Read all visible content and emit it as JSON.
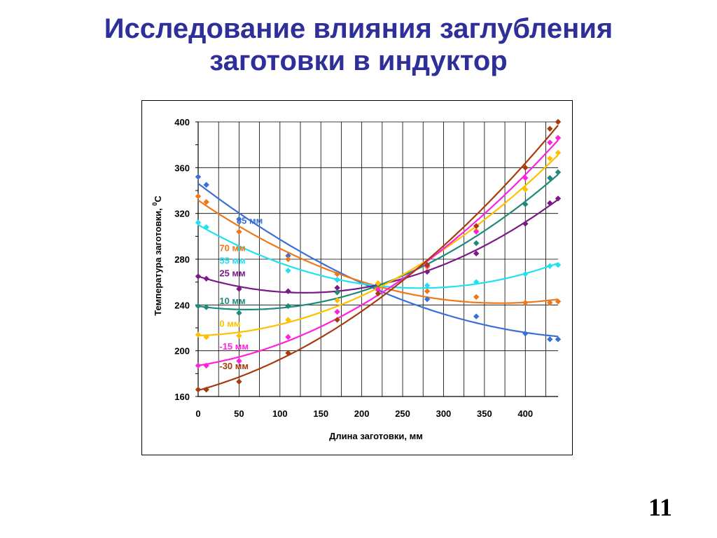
{
  "slide": {
    "title_line1": "Исследование влияния заглубления",
    "title_line2": "заготовки в индуктор",
    "page_number": "11"
  },
  "chart_data": {
    "type": "scatter",
    "xlabel": "Длина заготовки, мм",
    "ylabel_main": "Температура заготовки, ",
    "ylabel_sup": "0",
    "ylabel_unit": "С",
    "xlim": [
      0,
      440
    ],
    "ylim": [
      160,
      400
    ],
    "x_ticks": [
      0,
      50,
      100,
      150,
      200,
      250,
      300,
      350,
      400
    ],
    "y_ticks": [
      160,
      200,
      240,
      280,
      320,
      360,
      400
    ],
    "grid": true,
    "trendlines": true,
    "x": [
      0,
      10,
      50,
      110,
      170,
      220,
      280,
      340,
      400,
      430,
      440
    ],
    "series": [
      {
        "name": "85 мм",
        "color": "#3a6fd8",
        "values": [
          352,
          345,
          315,
          283,
          262,
          258,
          245,
          230,
          215,
          210,
          210
        ]
      },
      {
        "name": "70 мм",
        "color": "#f07818",
        "values": [
          335,
          330,
          304,
          280,
          267,
          255,
          252,
          247,
          242,
          242,
          243
        ]
      },
      {
        "name": "55 мм",
        "color": "#22e0f0",
        "values": [
          312,
          308,
          289,
          270,
          262,
          258,
          257,
          260,
          267,
          274,
          275
        ]
      },
      {
        "name": "25 мм",
        "color": "#7a1a86",
        "values": [
          265,
          263,
          254,
          252,
          255,
          258,
          269,
          285,
          311,
          329,
          333
        ]
      },
      {
        "name": "10 мм",
        "color": "#1f8a7a",
        "values": [
          239,
          238,
          233,
          239,
          251,
          258,
          275,
          294,
          328,
          351,
          356
        ]
      },
      {
        "name": "0 мм",
        "color": "#ffc000",
        "values": [
          214,
          212,
          213,
          227,
          244,
          259,
          273,
          305,
          341,
          368,
          373
        ]
      },
      {
        "name": "-15 мм",
        "color": "#ff20e0",
        "values": [
          187,
          187,
          191,
          212,
          234,
          253,
          274,
          304,
          351,
          382,
          386
        ]
      },
      {
        "name": "-30 мм",
        "color": "#a63c0c",
        "values": [
          166,
          166,
          173,
          198,
          227,
          250,
          275,
          309,
          360,
          394,
          400
        ]
      }
    ]
  }
}
